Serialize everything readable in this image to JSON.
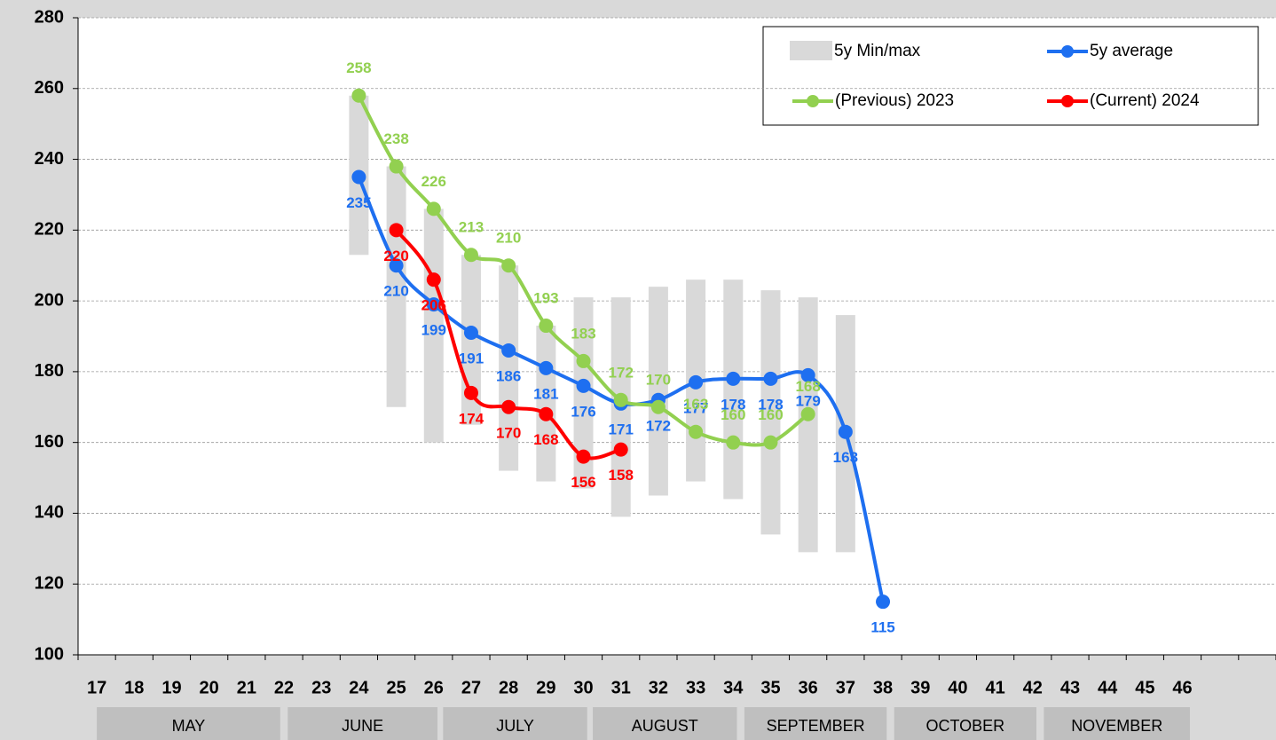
{
  "chart_data": {
    "type": "line",
    "categories": [
      "17",
      "18",
      "19",
      "20",
      "21",
      "22",
      "23",
      "24",
      "25",
      "26",
      "27",
      "28",
      "29",
      "30",
      "31",
      "32",
      "33",
      "34",
      "35",
      "36",
      "37",
      "38",
      "39",
      "40",
      "41",
      "42",
      "43",
      "44",
      "45",
      "46",
      null,
      null
    ],
    "months": [
      "MAY",
      "JUNE",
      "JULY",
      "AUGUST",
      "SEPTEMBER",
      "OCTOBER",
      "NOVEMBER"
    ],
    "ylim": [
      100,
      280
    ],
    "yticks": [
      100,
      120,
      140,
      160,
      180,
      200,
      220,
      240,
      260,
      280
    ],
    "grid": true,
    "range": {
      "name": "5y Min/max",
      "color": "#d9d9d9",
      "low": [
        null,
        null,
        null,
        null,
        null,
        null,
        null,
        213,
        170,
        160,
        165,
        152,
        149,
        147,
        139,
        145,
        149,
        144,
        134,
        129,
        129,
        null,
        null,
        null,
        null,
        null,
        null,
        null,
        null,
        null,
        null,
        null
      ],
      "high": [
        null,
        null,
        null,
        null,
        null,
        null,
        null,
        258,
        238,
        226,
        213,
        210,
        193,
        201,
        201,
        204,
        206,
        206,
        203,
        201,
        196,
        null,
        null,
        null,
        null,
        null,
        null,
        null,
        null,
        null,
        null,
        null
      ]
    },
    "series": [
      {
        "name": "5y average",
        "color": "#1e6ff0",
        "label_pos": "below",
        "values": [
          null,
          null,
          null,
          null,
          null,
          null,
          null,
          235,
          210,
          199,
          191,
          186,
          181,
          176,
          171,
          172,
          177,
          178,
          178,
          179,
          163,
          115,
          null,
          null,
          null,
          null,
          null,
          null,
          null,
          null,
          null,
          null
        ]
      },
      {
        "name": "(Previous) 2023",
        "color": "#92d050",
        "label_pos": "above",
        "values": [
          null,
          null,
          null,
          null,
          null,
          null,
          null,
          258,
          238,
          226,
          213,
          210,
          193,
          183,
          172,
          170,
          163,
          160,
          160,
          168,
          null,
          null,
          null,
          null,
          null,
          null,
          null,
          null,
          null,
          null,
          null,
          null
        ]
      },
      {
        "name": "(Current) 2024",
        "color": "#ff0000",
        "label_pos": "below",
        "values": [
          null,
          null,
          null,
          null,
          null,
          null,
          null,
          null,
          220,
          206,
          174,
          170,
          168,
          156,
          158,
          null,
          null,
          null,
          null,
          null,
          null,
          null,
          null,
          null,
          null,
          null,
          null,
          null,
          null,
          null,
          null,
          null
        ]
      }
    ]
  }
}
